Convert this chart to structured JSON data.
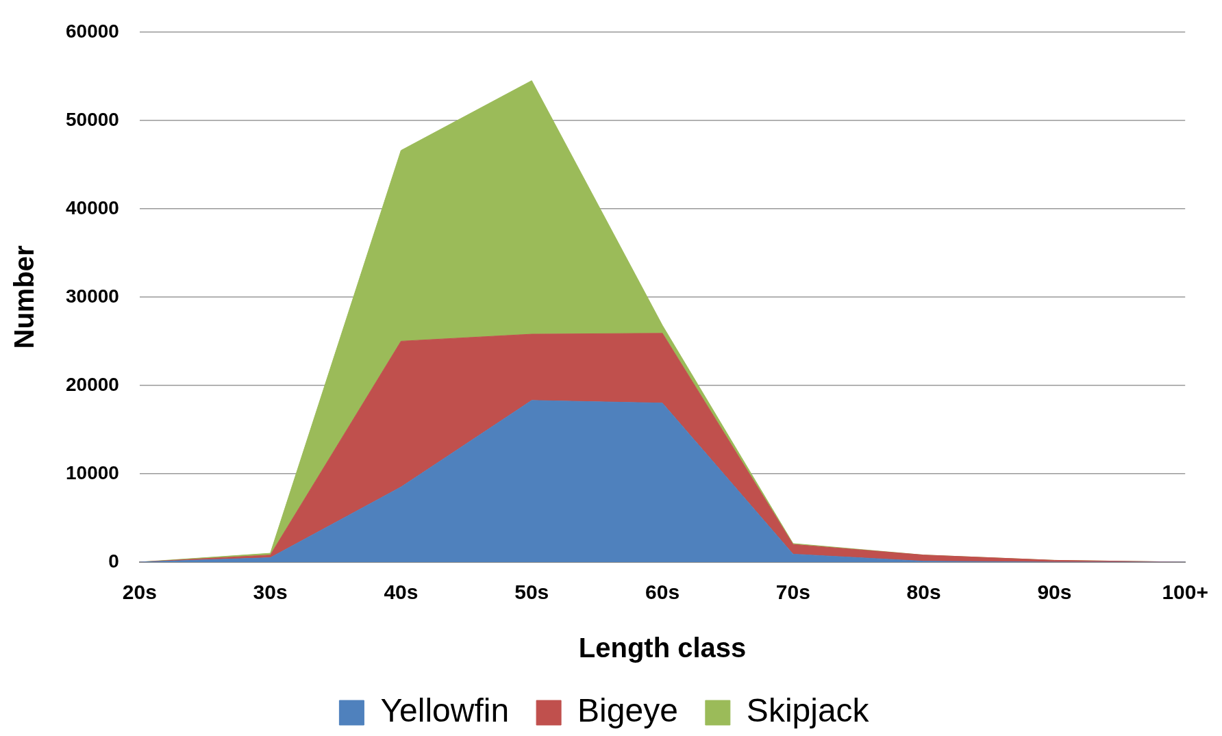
{
  "chart_data": {
    "type": "area",
    "stacked": true,
    "xlabel": "Length class",
    "ylabel": "Number",
    "categories": [
      "20s",
      "30s",
      "40s",
      "50s",
      "60s",
      "70s",
      "80s",
      "90s",
      "100+"
    ],
    "series": [
      {
        "name": "Yellowfin",
        "color": "#4f81bd",
        "values": [
          0,
          500,
          8500,
          18300,
          18000,
          900,
          100,
          0,
          0
        ]
      },
      {
        "name": "Bigeye",
        "color": "#c0504d",
        "values": [
          0,
          300,
          16500,
          7500,
          7900,
          1100,
          700,
          200,
          0
        ]
      },
      {
        "name": "Skipjack",
        "color": "#9bbb59",
        "values": [
          0,
          200,
          21600,
          28700,
          900,
          100,
          0,
          0,
          0
        ]
      }
    ],
    "ylim": [
      0,
      60000
    ],
    "yticks": [
      0,
      10000,
      20000,
      30000,
      40000,
      50000,
      60000
    ],
    "grid": "y",
    "legend": "bottom"
  }
}
